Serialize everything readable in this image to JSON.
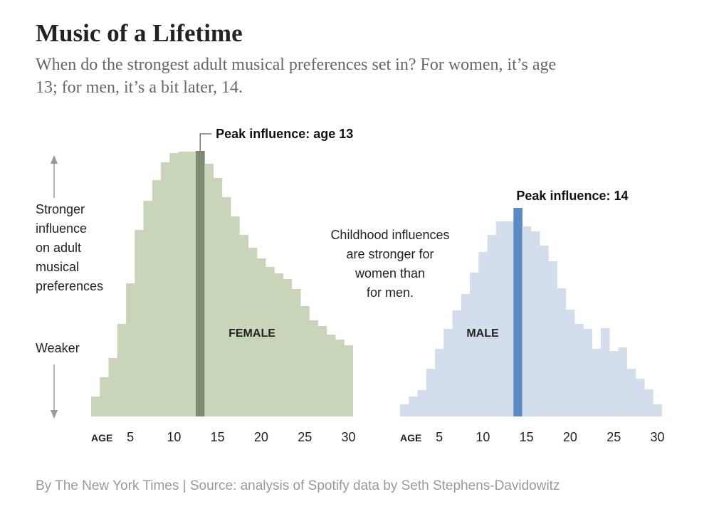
{
  "header": {
    "title": "Music of a Lifetime",
    "subtitle_lines": [
      "When do the strongest adult musical preferences set in? For women, it’s age",
      "13; for men, it’s a bit later, 14."
    ]
  },
  "y_axis_note": {
    "upper_lines": [
      "Stronger",
      "influence",
      "on adult",
      "musical",
      "preferences"
    ],
    "lower": "Weaker"
  },
  "middle_note_lines": [
    "Childhood influences",
    "are stronger for",
    "women than",
    "for men."
  ],
  "footer": "By The New York Times | Source: analysis of Spotify data by Seth Stephens-Davidowitz",
  "chart_data": [
    {
      "type": "bar",
      "name": "FEMALE",
      "x_label": "AGE",
      "peak_annotation": "Peak influence: age 13",
      "x": [
        1,
        2,
        3,
        4,
        5,
        6,
        7,
        8,
        9,
        10,
        11,
        12,
        13,
        14,
        15,
        16,
        17,
        18,
        19,
        20,
        21,
        22,
        23,
        24,
        25,
        26,
        27,
        28,
        29,
        30
      ],
      "values": [
        28,
        55,
        82,
        130,
        187,
        262,
        303,
        332,
        357,
        370,
        372,
        372,
        373,
        355,
        335,
        308,
        281,
        255,
        237,
        222,
        210,
        201,
        193,
        179,
        155,
        135,
        127,
        115,
        108,
        100
      ],
      "colors": [
        "#c8d5b9",
        "#c8d5b9",
        "#c8d5b9",
        "#c8d5b9",
        "#c8d5b9",
        "#c8d5b9",
        "#c8d5b9",
        "#c8d5b9",
        "#c8d5b9",
        "#c8d5b9",
        "#c8d5b9",
        "#c8d5b9",
        "#7c8a70",
        "#c8d5b9",
        "#c8d5b9",
        "#c8d5b9",
        "#c8d5b9",
        "#c8d5b9",
        "#c8d5b9",
        "#c8d5b9",
        "#c8d5b9",
        "#c8d5b9",
        "#c8d5b9",
        "#c8d5b9",
        "#c8d5b9",
        "#c8d5b9",
        "#c8d5b9",
        "#c8d5b9",
        "#c8d5b9",
        "#c8d5b9"
      ],
      "xlim": [
        0.5,
        30.5
      ],
      "xticks": [
        5,
        10,
        15,
        20,
        25,
        30
      ],
      "ylim": [
        0,
        400
      ]
    },
    {
      "type": "bar",
      "name": "MALE",
      "x_label": "AGE",
      "peak_annotation": "Peak influence: 14",
      "x": [
        1,
        2,
        3,
        4,
        5,
        6,
        7,
        8,
        9,
        10,
        11,
        12,
        13,
        14,
        15,
        16,
        17,
        18,
        19,
        20,
        21,
        22,
        23,
        24,
        25,
        26,
        27,
        28,
        29,
        30
      ],
      "values": [
        17,
        28,
        37,
        67,
        95,
        123,
        149,
        172,
        202,
        231,
        255,
        274,
        274,
        293,
        267,
        260,
        240,
        218,
        180,
        150,
        130,
        123,
        95,
        124,
        92,
        97,
        67,
        53,
        38,
        17
      ],
      "colors": [
        "#d3ddeb",
        "#d3ddeb",
        "#d3ddeb",
        "#d3ddeb",
        "#d3ddeb",
        "#d3ddeb",
        "#d3ddeb",
        "#d3ddeb",
        "#d3ddeb",
        "#d3ddeb",
        "#d3ddeb",
        "#d3ddeb",
        "#d3ddeb",
        "#5a8bc4",
        "#d3ddeb",
        "#d3ddeb",
        "#d3ddeb",
        "#d3ddeb",
        "#d3ddeb",
        "#d3ddeb",
        "#d3ddeb",
        "#d3ddeb",
        "#d3ddeb",
        "#d3ddeb",
        "#d3ddeb",
        "#d3ddeb",
        "#d3ddeb",
        "#d3ddeb",
        "#d3ddeb",
        "#d3ddeb"
      ],
      "xlim": [
        0.5,
        30.5
      ],
      "xticks": [
        5,
        10,
        15,
        20,
        25,
        30
      ],
      "ylim": [
        0,
        400
      ]
    }
  ]
}
